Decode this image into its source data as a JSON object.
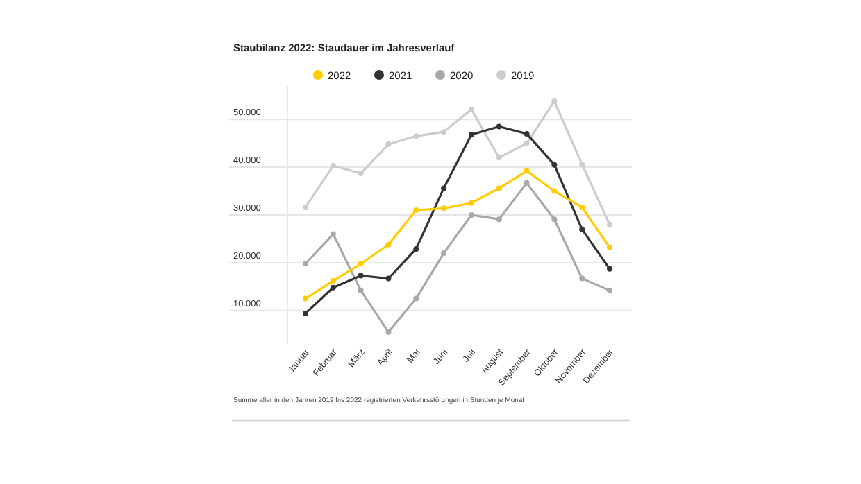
{
  "chart_data": {
    "type": "line",
    "title": "Staubilanz 2022: Staudauer im Jahresverlauf",
    "categories": [
      "Januar",
      "Februar",
      "März",
      "April",
      "Mai",
      "Juni",
      "Juli",
      "August",
      "September",
      "Oktober",
      "November",
      "Dezember"
    ],
    "series": [
      {
        "name": "2022",
        "color": "#ffcc00",
        "values": [
          12500,
          16200,
          19800,
          23800,
          31000,
          31400,
          32500,
          35600,
          39200,
          35000,
          31600,
          23200
        ]
      },
      {
        "name": "2021",
        "color": "#333333",
        "values": [
          9400,
          14800,
          17300,
          16700,
          22900,
          35600,
          46800,
          48500,
          47000,
          40500,
          27000,
          18700
        ]
      },
      {
        "name": "2020",
        "color": "#a8a8a8",
        "values": [
          19800,
          26000,
          14200,
          5500,
          12500,
          22000,
          30000,
          29100,
          36700,
          29100,
          16700,
          14200
        ]
      },
      {
        "name": "2019",
        "color": "#cccccc",
        "values": [
          31600,
          40300,
          38700,
          44800,
          46500,
          47400,
          52100,
          42000,
          45000,
          53800,
          40600,
          28000
        ]
      }
    ],
    "ylim": [
      3000,
      57000
    ],
    "yticks": [
      {
        "value": 10000,
        "label": "10.000"
      },
      {
        "value": 20000,
        "label": "20.000"
      },
      {
        "value": 30000,
        "label": "30.000"
      },
      {
        "value": 40000,
        "label": "40.000"
      },
      {
        "value": 50000,
        "label": "50.000"
      }
    ],
    "grid": "y",
    "legend": "top",
    "marker": "circle",
    "line_style": "solid",
    "annotations": [
      "Summe aller in den Jahren 2019 bis 2022 registrierten Verkehrsstörungen in Stunden je Monat"
    ]
  }
}
